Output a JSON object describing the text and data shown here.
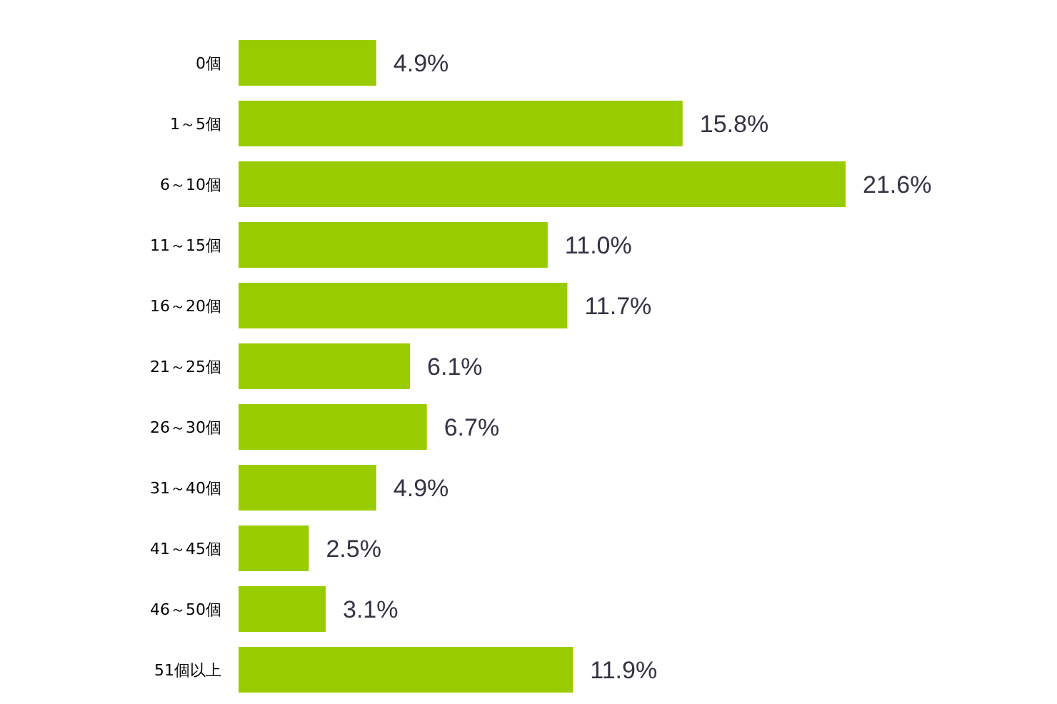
{
  "chart_data": {
    "type": "bar",
    "orientation": "horizontal",
    "value_labels": [
      "4.9%",
      "15.8%",
      "21.6%",
      "11.0%",
      "11.7%",
      "6.1%",
      "6.7%",
      "4.9%",
      "2.5%",
      "3.1%",
      "11.9%"
    ],
    "categories": [
      "0個",
      "1～5個",
      "6～10個",
      "11～15個",
      "16～20個",
      "21～25個",
      "26～30個",
      "31～40個",
      "41～45個",
      "46～50個",
      "51個以上"
    ],
    "values": [
      4.9,
      15.8,
      21.6,
      11.0,
      11.7,
      6.1,
      6.7,
      4.9,
      2.5,
      3.1,
      11.9
    ],
    "color": "#99cc00"
  }
}
